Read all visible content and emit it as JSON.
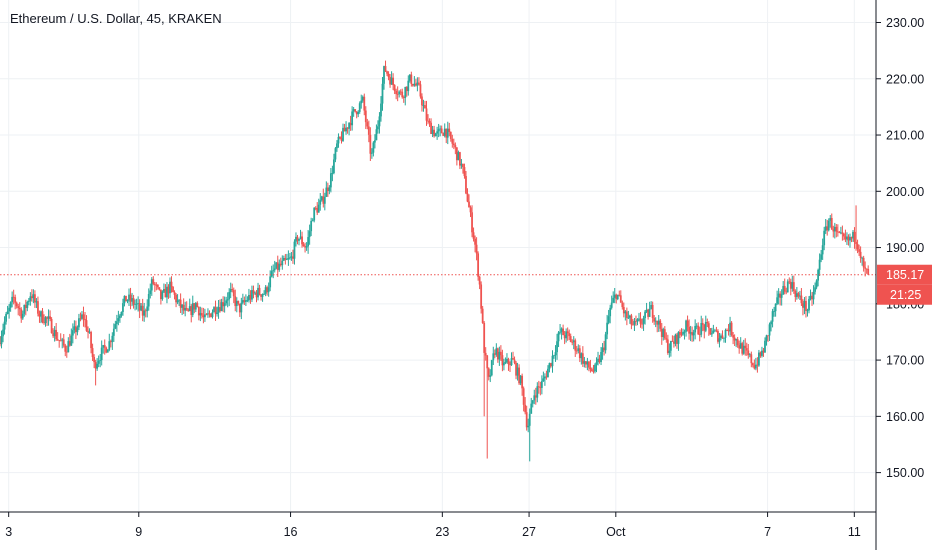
{
  "header": {
    "title": "Ethereum / U.S. Dollar, 45, KRAKEN"
  },
  "colors": {
    "up": "#26a69a",
    "down": "#ef5350",
    "grid": "#eef1f4",
    "axis": "#131722",
    "price_line": "#ef5350",
    "badge_bg": "#ef5350",
    "badge_text": "#ffffff",
    "background": "#ffffff"
  },
  "chart_data": {
    "type": "candlestick",
    "title": "Ethereum / U.S. Dollar, 45, KRAKEN",
    "ylim": [
      143,
      234
    ],
    "y_ticks": [
      150,
      160,
      170,
      180,
      190,
      200,
      210,
      220,
      230
    ],
    "y_tick_labels": [
      "150.00",
      "160.00",
      "170.00",
      "180.00",
      "190.00",
      "200.00",
      "210.00",
      "220.00",
      "230.00"
    ],
    "x_ticks": [
      {
        "label": "3",
        "day": 3
      },
      {
        "label": "9",
        "day": 9
      },
      {
        "label": "16",
        "day": 16
      },
      {
        "label": "23",
        "day": 23
      },
      {
        "label": "27",
        "day": 27
      },
      {
        "label": "Oct",
        "day": 31
      },
      {
        "label": "7",
        "day": 38
      },
      {
        "label": "11",
        "day": 42
      }
    ],
    "x_range_days": [
      2.6,
      43
    ],
    "last_price": 185.17,
    "last_price_label": "185.17",
    "countdown_label": "21:25",
    "grid": true,
    "price_path": [
      [
        2.6,
        173
      ],
      [
        2.9,
        177
      ],
      [
        3.3,
        181
      ],
      [
        3.7,
        178
      ],
      [
        4.1,
        182
      ],
      [
        4.5,
        178
      ],
      [
        4.9,
        177
      ],
      [
        5.3,
        174
      ],
      [
        5.7,
        172
      ],
      [
        6.1,
        175
      ],
      [
        6.5,
        178
      ],
      [
        6.8,
        174
      ],
      [
        7.0,
        169
      ],
      [
        7.3,
        171
      ],
      [
        7.7,
        173
      ],
      [
        8.1,
        178
      ],
      [
        8.5,
        181
      ],
      [
        8.9,
        180
      ],
      [
        9.3,
        178
      ],
      [
        9.7,
        184
      ],
      [
        10.1,
        181
      ],
      [
        10.5,
        183
      ],
      [
        10.9,
        180
      ],
      [
        11.3,
        178
      ],
      [
        11.7,
        180
      ],
      [
        12.1,
        177
      ],
      [
        12.5,
        179
      ],
      [
        12.9,
        180
      ],
      [
        13.3,
        182
      ],
      [
        13.7,
        179
      ],
      [
        14.1,
        181
      ],
      [
        14.5,
        182
      ],
      [
        14.9,
        182
      ],
      [
        15.3,
        186
      ],
      [
        15.7,
        187
      ],
      [
        16.1,
        188
      ],
      [
        16.4,
        192
      ],
      [
        16.8,
        190
      ],
      [
        17.1,
        196
      ],
      [
        17.5,
        198
      ],
      [
        17.9,
        202
      ],
      [
        18.2,
        208
      ],
      [
        18.6,
        211
      ],
      [
        19.0,
        214
      ],
      [
        19.4,
        216
      ],
      [
        19.8,
        206
      ],
      [
        20.1,
        212
      ],
      [
        20.4,
        222
      ],
      [
        20.8,
        219
      ],
      [
        21.2,
        217
      ],
      [
        21.6,
        220
      ],
      [
        22.0,
        218
      ],
      [
        22.4,
        212
      ],
      [
        22.8,
        210
      ],
      [
        23.2,
        211
      ],
      [
        23.6,
        208
      ],
      [
        24.0,
        204
      ],
      [
        24.3,
        197
      ],
      [
        24.6,
        190
      ],
      [
        24.8,
        183
      ],
      [
        25.0,
        172
      ],
      [
        25.2,
        166
      ],
      [
        25.5,
        172
      ],
      [
        25.9,
        169
      ],
      [
        26.3,
        170
      ],
      [
        26.7,
        166
      ],
      [
        27.0,
        158
      ],
      [
        27.3,
        164
      ],
      [
        27.7,
        166
      ],
      [
        28.1,
        170
      ],
      [
        28.5,
        175
      ],
      [
        28.9,
        174
      ],
      [
        29.3,
        172
      ],
      [
        29.7,
        169
      ],
      [
        30.1,
        168
      ],
      [
        30.5,
        172
      ],
      [
        30.8,
        179
      ],
      [
        31.1,
        182
      ],
      [
        31.5,
        178
      ],
      [
        31.9,
        176
      ],
      [
        32.3,
        177
      ],
      [
        32.7,
        179
      ],
      [
        33.1,
        176
      ],
      [
        33.5,
        172
      ],
      [
        33.9,
        174
      ],
      [
        34.3,
        176
      ],
      [
        34.7,
        175
      ],
      [
        35.1,
        176
      ],
      [
        35.5,
        175
      ],
      [
        35.9,
        174
      ],
      [
        36.3,
        176
      ],
      [
        36.7,
        173
      ],
      [
        37.1,
        171
      ],
      [
        37.5,
        169
      ],
      [
        37.9,
        172
      ],
      [
        38.3,
        178
      ],
      [
        38.7,
        182
      ],
      [
        39.1,
        184
      ],
      [
        39.5,
        181
      ],
      [
        39.9,
        179
      ],
      [
        40.3,
        183
      ],
      [
        40.6,
        191
      ],
      [
        40.9,
        195
      ],
      [
        41.3,
        192
      ],
      [
        41.7,
        191
      ],
      [
        42.1,
        192
      ],
      [
        42.3,
        190
      ],
      [
        42.5,
        186
      ],
      [
        42.7,
        185.17
      ]
    ]
  }
}
